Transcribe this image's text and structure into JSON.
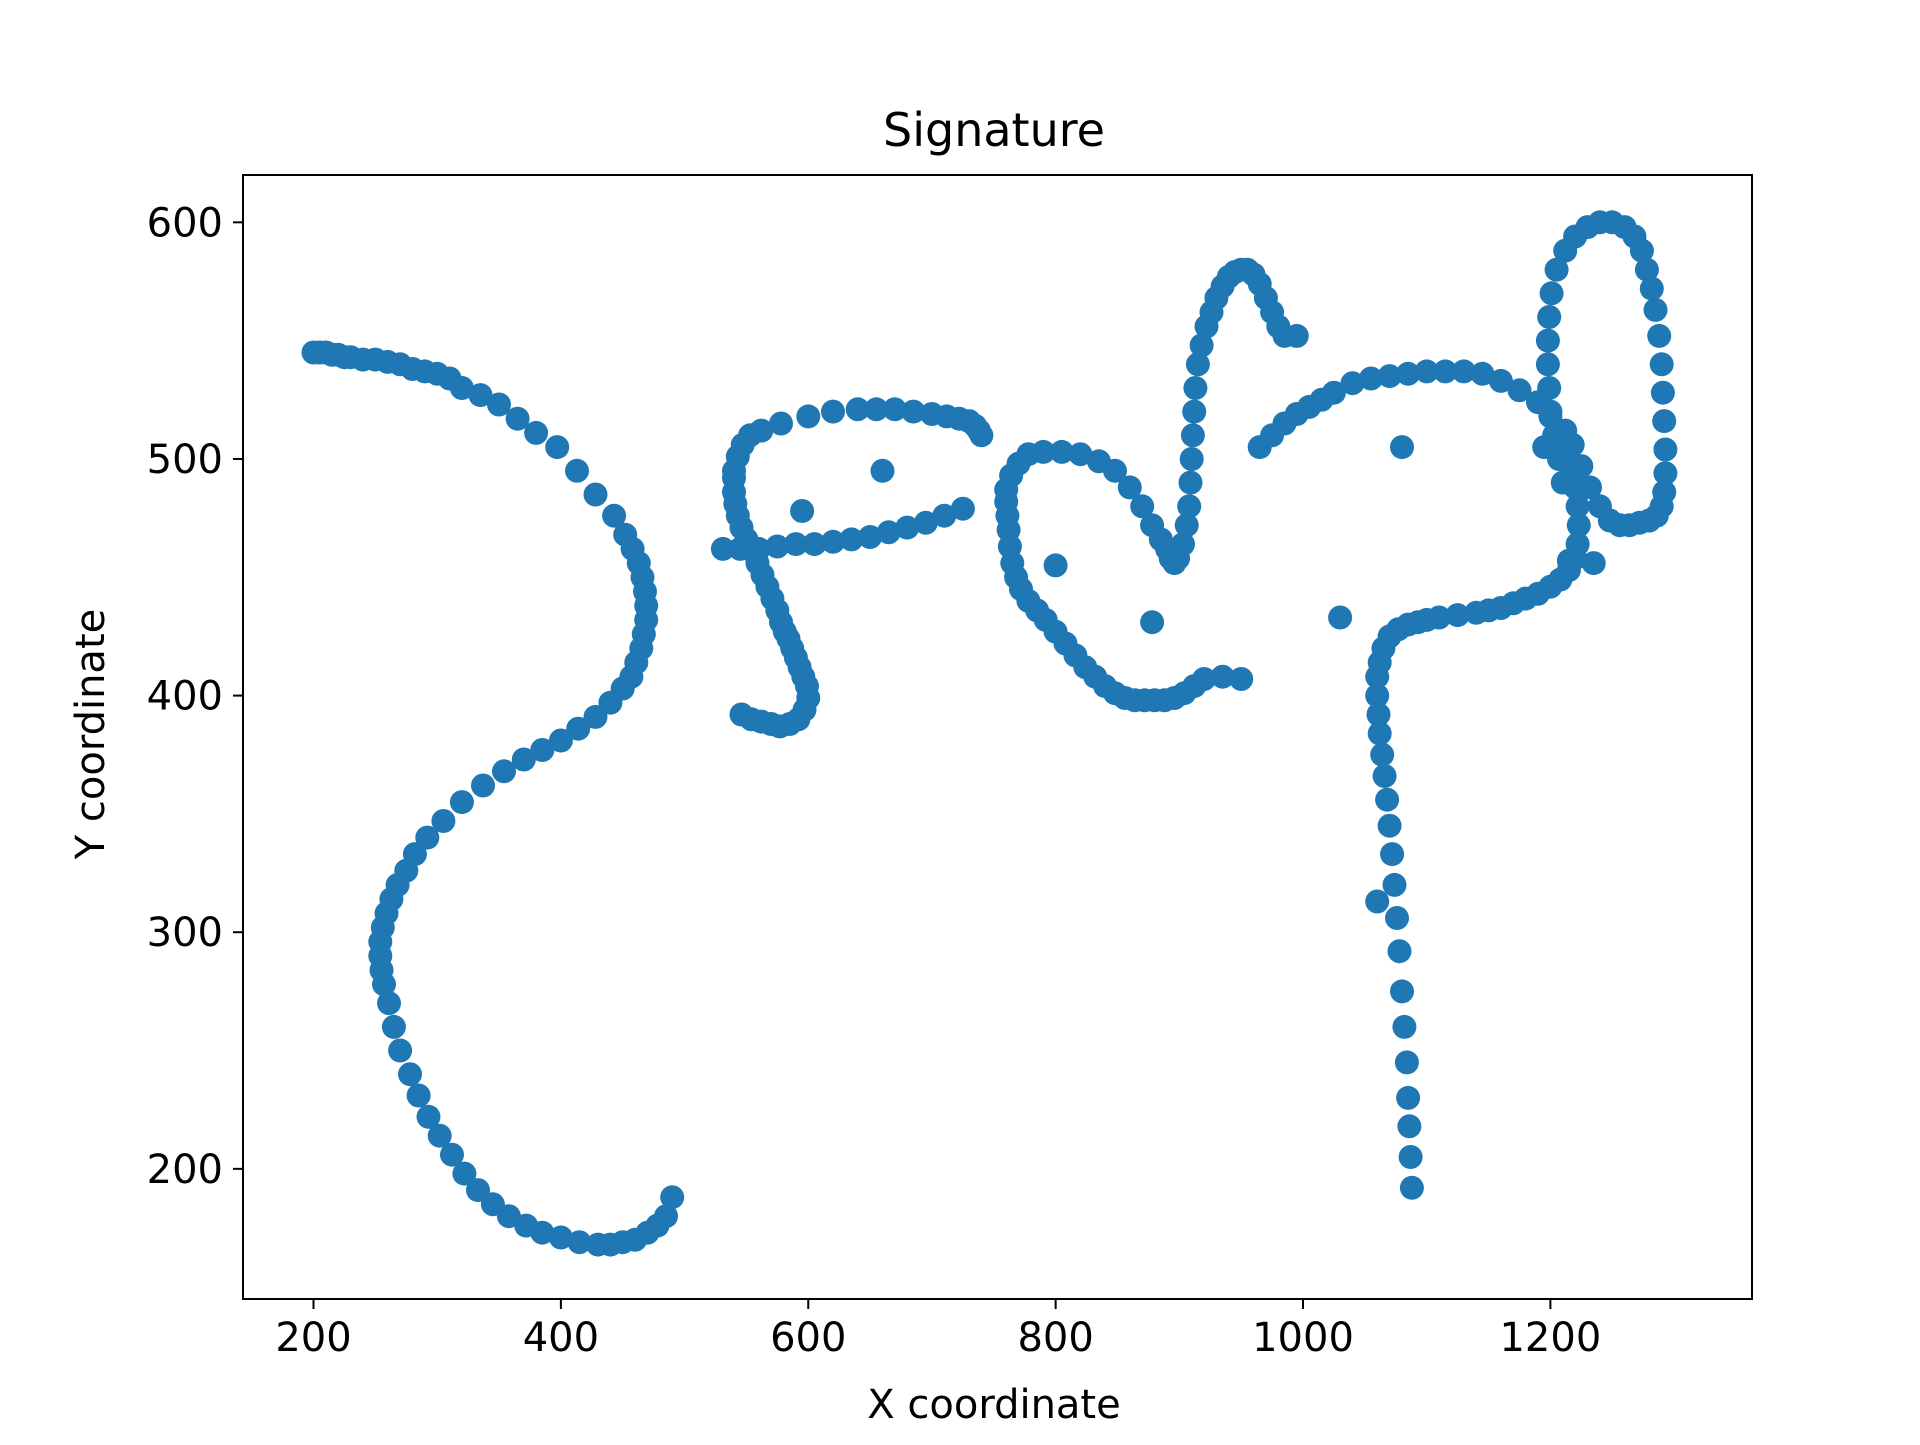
{
  "chart_data": {
    "type": "scatter",
    "title": "Signature",
    "xlabel": "X coordinate",
    "ylabel": "Y coordinate",
    "xlim": [
      143,
      1363
    ],
    "ylim": [
      145,
      620
    ],
    "x_ticks": [
      200,
      400,
      600,
      800,
      1000,
      1200
    ],
    "y_ticks": [
      200,
      300,
      400,
      500,
      600
    ],
    "grid": false,
    "legend": false,
    "marker_color": "#1f77b4",
    "series": [
      {
        "points": [
          [
            200,
            545
          ],
          [
            205,
            545
          ],
          [
            210,
            545
          ],
          [
            215,
            544
          ],
          [
            220,
            544
          ],
          [
            225,
            543
          ],
          [
            230,
            543
          ],
          [
            240,
            542
          ],
          [
            250,
            542
          ],
          [
            260,
            541
          ],
          [
            270,
            540
          ],
          [
            280,
            538
          ],
          [
            290,
            537
          ],
          [
            300,
            536
          ],
          [
            310,
            534
          ],
          [
            320,
            530
          ],
          [
            335,
            527
          ],
          [
            350,
            523
          ],
          [
            365,
            517
          ],
          [
            380,
            511
          ],
          [
            397,
            505
          ],
          [
            413,
            495
          ],
          [
            428,
            485
          ],
          [
            443,
            476
          ],
          [
            452,
            468
          ],
          [
            458,
            462
          ],
          [
            463,
            456
          ],
          [
            466,
            450
          ],
          [
            468,
            444
          ],
          [
            469,
            438
          ],
          [
            469,
            432
          ],
          [
            467,
            426
          ],
          [
            465,
            420
          ],
          [
            461,
            414
          ],
          [
            457,
            408
          ],
          [
            450,
            403
          ],
          [
            440,
            397
          ],
          [
            428,
            391
          ],
          [
            414,
            386
          ],
          [
            400,
            381
          ],
          [
            385,
            377
          ],
          [
            370,
            373
          ],
          [
            354,
            368
          ],
          [
            337,
            362
          ],
          [
            320,
            355
          ],
          [
            305,
            347
          ],
          [
            292,
            340
          ],
          [
            282,
            333
          ],
          [
            275,
            326
          ],
          [
            268,
            320
          ],
          [
            263,
            314
          ],
          [
            259,
            308
          ],
          [
            256,
            302
          ],
          [
            254,
            296
          ],
          [
            254,
            290
          ],
          [
            255,
            284
          ],
          [
            257,
            278
          ],
          [
            261,
            270
          ],
          [
            265,
            260
          ],
          [
            270,
            250
          ],
          [
            278,
            240
          ],
          [
            285,
            231
          ],
          [
            293,
            222
          ],
          [
            302,
            214
          ],
          [
            312,
            206
          ],
          [
            322,
            198
          ],
          [
            333,
            191
          ],
          [
            345,
            185
          ],
          [
            358,
            180
          ],
          [
            372,
            176
          ],
          [
            385,
            173
          ],
          [
            400,
            171
          ],
          [
            415,
            169
          ],
          [
            430,
            168
          ],
          [
            440,
            168
          ],
          [
            450,
            169
          ],
          [
            460,
            170
          ],
          [
            470,
            173
          ],
          [
            478,
            176
          ],
          [
            485,
            180
          ],
          [
            490,
            188
          ],
          [
            531,
            462
          ],
          [
            545,
            462
          ],
          [
            560,
            462
          ],
          [
            575,
            463
          ],
          [
            590,
            464
          ],
          [
            605,
            464
          ],
          [
            620,
            465
          ],
          [
            635,
            466
          ],
          [
            650,
            467
          ],
          [
            665,
            469
          ],
          [
            680,
            471
          ],
          [
            695,
            473
          ],
          [
            710,
            476
          ],
          [
            725,
            479
          ],
          [
            540,
            492
          ],
          [
            540,
            486
          ],
          [
            541,
            481
          ],
          [
            543,
            476
          ],
          [
            546,
            471
          ],
          [
            550,
            466
          ],
          [
            555,
            461
          ],
          [
            559,
            456
          ],
          [
            563,
            451
          ],
          [
            567,
            446
          ],
          [
            571,
            441
          ],
          [
            575,
            436
          ],
          [
            578,
            431
          ],
          [
            581,
            427
          ],
          [
            584,
            424
          ],
          [
            587,
            420
          ],
          [
            590,
            416
          ],
          [
            593,
            412
          ],
          [
            596,
            408
          ],
          [
            599,
            404
          ],
          [
            600,
            399
          ],
          [
            597,
            394
          ],
          [
            592,
            390
          ],
          [
            585,
            388
          ],
          [
            577,
            387
          ],
          [
            570,
            388
          ],
          [
            562,
            389
          ],
          [
            554,
            390
          ],
          [
            546,
            392
          ],
          [
            540,
            495
          ],
          [
            543,
            501
          ],
          [
            547,
            506
          ],
          [
            553,
            510
          ],
          [
            562,
            512
          ],
          [
            578,
            515
          ],
          [
            600,
            518
          ],
          [
            620,
            520
          ],
          [
            640,
            521
          ],
          [
            655,
            521
          ],
          [
            670,
            521
          ],
          [
            685,
            520
          ],
          [
            700,
            519
          ],
          [
            712,
            518
          ],
          [
            722,
            517
          ],
          [
            730,
            516
          ],
          [
            735,
            514
          ],
          [
            738,
            512
          ],
          [
            740,
            510
          ],
          [
            595,
            478
          ],
          [
            660,
            495
          ],
          [
            760,
            487
          ],
          [
            764,
            493
          ],
          [
            770,
            498
          ],
          [
            778,
            502
          ],
          [
            790,
            503
          ],
          [
            805,
            503
          ],
          [
            820,
            502
          ],
          [
            835,
            499
          ],
          [
            848,
            495
          ],
          [
            860,
            488
          ],
          [
            870,
            480
          ],
          [
            878,
            472
          ],
          [
            885,
            466
          ],
          [
            890,
            462
          ],
          [
            893,
            458
          ],
          [
            896,
            456
          ],
          [
            899,
            458
          ],
          [
            903,
            464
          ],
          [
            906,
            472
          ],
          [
            908,
            480
          ],
          [
            909,
            490
          ],
          [
            910,
            500
          ],
          [
            911,
            510
          ],
          [
            912,
            520
          ],
          [
            913,
            530
          ],
          [
            915,
            540
          ],
          [
            918,
            548
          ],
          [
            922,
            556
          ],
          [
            926,
            562
          ],
          [
            930,
            568
          ],
          [
            935,
            573
          ],
          [
            940,
            577
          ],
          [
            945,
            579
          ],
          [
            950,
            580
          ],
          [
            955,
            580
          ],
          [
            960,
            578
          ],
          [
            965,
            574
          ],
          [
            970,
            568
          ],
          [
            975,
            562
          ],
          [
            980,
            556
          ],
          [
            985,
            552
          ],
          [
            995,
            552
          ],
          [
            760,
            482
          ],
          [
            761,
            476
          ],
          [
            762,
            470
          ],
          [
            763,
            463
          ],
          [
            765,
            456
          ],
          [
            768,
            450
          ],
          [
            772,
            445
          ],
          [
            778,
            440
          ],
          [
            785,
            436
          ],
          [
            792,
            432
          ],
          [
            800,
            427
          ],
          [
            808,
            422
          ],
          [
            816,
            417
          ],
          [
            824,
            412
          ],
          [
            832,
            408
          ],
          [
            840,
            404
          ],
          [
            848,
            401
          ],
          [
            856,
            399
          ],
          [
            864,
            398
          ],
          [
            872,
            398
          ],
          [
            880,
            398
          ],
          [
            888,
            398
          ],
          [
            896,
            399
          ],
          [
            904,
            401
          ],
          [
            912,
            404
          ],
          [
            920,
            407
          ],
          [
            935,
            408
          ],
          [
            950,
            407
          ],
          [
            800,
            455
          ],
          [
            878,
            431
          ],
          [
            965,
            505
          ],
          [
            975,
            510
          ],
          [
            985,
            515
          ],
          [
            995,
            519
          ],
          [
            1005,
            522
          ],
          [
            1015,
            525
          ],
          [
            1025,
            528
          ],
          [
            1040,
            532
          ],
          [
            1055,
            534
          ],
          [
            1070,
            535
          ],
          [
            1085,
            536
          ],
          [
            1100,
            537
          ],
          [
            1115,
            537
          ],
          [
            1130,
            537
          ],
          [
            1145,
            536
          ],
          [
            1160,
            533
          ],
          [
            1175,
            529
          ],
          [
            1190,
            524
          ],
          [
            1200,
            518
          ],
          [
            1208,
            511
          ],
          [
            1214,
            504
          ],
          [
            1218,
            496
          ],
          [
            1220,
            488
          ],
          [
            1222,
            480
          ],
          [
            1223,
            472
          ],
          [
            1222,
            464
          ],
          [
            1220,
            458
          ],
          [
            1215,
            453
          ],
          [
            1208,
            449
          ],
          [
            1200,
            446
          ],
          [
            1190,
            443
          ],
          [
            1180,
            441
          ],
          [
            1170,
            439
          ],
          [
            1160,
            437
          ],
          [
            1150,
            436
          ],
          [
            1140,
            435
          ],
          [
            1125,
            434
          ],
          [
            1110,
            433
          ],
          [
            1100,
            432
          ],
          [
            1093,
            431
          ],
          [
            1085,
            430
          ],
          [
            1077,
            428
          ],
          [
            1070,
            425
          ],
          [
            1065,
            420
          ],
          [
            1062,
            414
          ],
          [
            1060,
            408
          ],
          [
            1060,
            400
          ],
          [
            1061,
            392
          ],
          [
            1062,
            384
          ],
          [
            1064,
            375
          ],
          [
            1066,
            366
          ],
          [
            1068,
            356
          ],
          [
            1070,
            345
          ],
          [
            1072,
            333
          ],
          [
            1074,
            320
          ],
          [
            1076,
            306
          ],
          [
            1078,
            292
          ],
          [
            1080,
            275
          ],
          [
            1082,
            260
          ],
          [
            1084,
            245
          ],
          [
            1085,
            230
          ],
          [
            1086,
            218
          ],
          [
            1087,
            205
          ],
          [
            1088,
            192
          ],
          [
            1030,
            433
          ],
          [
            1060,
            313
          ],
          [
            1080,
            505
          ],
          [
            1210,
            490
          ],
          [
            1207,
            500
          ],
          [
            1203,
            510
          ],
          [
            1200,
            520
          ],
          [
            1199,
            530
          ],
          [
            1198,
            540
          ],
          [
            1198,
            550
          ],
          [
            1199,
            560
          ],
          [
            1201,
            570
          ],
          [
            1205,
            580
          ],
          [
            1212,
            588
          ],
          [
            1220,
            594
          ],
          [
            1230,
            598
          ],
          [
            1240,
            600
          ],
          [
            1250,
            600
          ],
          [
            1260,
            598
          ],
          [
            1268,
            594
          ],
          [
            1274,
            588
          ],
          [
            1278,
            580
          ],
          [
            1282,
            572
          ],
          [
            1285,
            563
          ],
          [
            1288,
            552
          ],
          [
            1290,
            540
          ],
          [
            1291,
            528
          ],
          [
            1292,
            516
          ],
          [
            1293,
            504
          ],
          [
            1293,
            494
          ],
          [
            1292,
            486
          ],
          [
            1290,
            480
          ],
          [
            1286,
            476
          ],
          [
            1280,
            474
          ],
          [
            1272,
            473
          ],
          [
            1264,
            472
          ],
          [
            1256,
            472
          ],
          [
            1248,
            474
          ],
          [
            1240,
            480
          ],
          [
            1232,
            488
          ],
          [
            1225,
            497
          ],
          [
            1218,
            506
          ],
          [
            1212,
            512
          ],
          [
            1195,
            505
          ],
          [
            1215,
            457
          ],
          [
            1235,
            456
          ]
        ]
      }
    ]
  }
}
